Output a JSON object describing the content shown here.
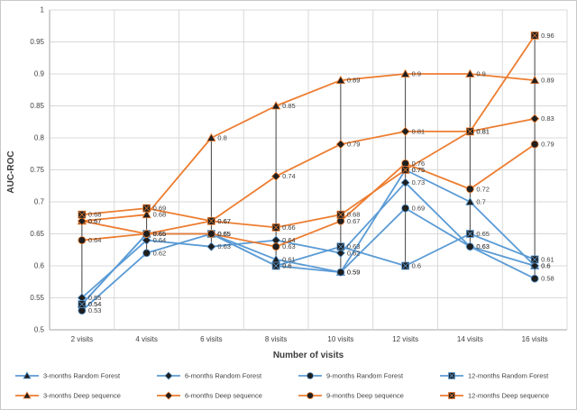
{
  "chart_data": {
    "type": "line",
    "title": "",
    "xlabel": "Number of visits",
    "ylabel": "AUC-ROC",
    "ylim": [
      0.5,
      1.0
    ],
    "yticks": [
      1,
      0.95,
      0.9,
      0.85,
      0.8,
      0.75,
      0.7,
      0.65,
      0.6,
      0.55,
      0.5
    ],
    "categories": [
      "2 visits",
      "4 visits",
      "6 visits",
      "8 visits",
      "10 visits",
      "12 visits",
      "14 visits",
      "16 visits"
    ],
    "series": [
      {
        "name": "3-months Random Forest",
        "color": "#5B9BD5",
        "marker": "triangle",
        "values": [
          0.54,
          0.65,
          0.65,
          0.61,
          0.59,
          0.75,
          0.7,
          0.6
        ]
      },
      {
        "name": "6-months Random Forest",
        "color": "#5B9BD5",
        "marker": "diamond",
        "values": [
          0.55,
          0.64,
          0.63,
          0.64,
          0.62,
          0.73,
          0.63,
          0.6
        ]
      },
      {
        "name": "9-months Random Forest",
        "color": "#5B9BD5",
        "marker": "circle",
        "values": [
          0.53,
          0.62,
          0.65,
          0.6,
          0.59,
          0.69,
          0.63,
          0.58
        ]
      },
      {
        "name": "12-months Random Forest",
        "color": "#5B9BD5",
        "marker": "square",
        "values": [
          0.54,
          0.65,
          0.65,
          0.6,
          0.63,
          0.6,
          0.65,
          0.61
        ]
      },
      {
        "name": "3-months Deep sequence",
        "color": "#ED7D31",
        "marker": "triangle",
        "values": [
          0.67,
          0.68,
          0.8,
          0.85,
          0.89,
          0.9,
          0.9,
          0.89
        ]
      },
      {
        "name": "6-months Deep sequence",
        "color": "#ED7D31",
        "marker": "diamond",
        "values": [
          0.67,
          0.65,
          0.67,
          0.74,
          0.79,
          0.81,
          0.81,
          0.83
        ]
      },
      {
        "name": "9-months Deep sequence",
        "color": "#ED7D31",
        "marker": "circle",
        "values": [
          0.64,
          0.65,
          0.65,
          0.63,
          0.67,
          0.76,
          0.72,
          0.79
        ]
      },
      {
        "name": "12-months Deep sequence",
        "color": "#ED7D31",
        "marker": "square",
        "values": [
          0.68,
          0.69,
          0.67,
          0.66,
          0.68,
          0.75,
          0.81,
          0.96
        ]
      }
    ],
    "grid": true,
    "data_labels": true,
    "high_low_lines": true,
    "legend_position": "bottom",
    "colors": {
      "grid": "#D9D9D9",
      "axis": "#A6A6A6",
      "label_text": "#404040",
      "marker_fill": "#1f1f1f",
      "high_low": "#404040",
      "random_forest": "#5B9BD5",
      "deep_sequence": "#ED7D31"
    }
  }
}
